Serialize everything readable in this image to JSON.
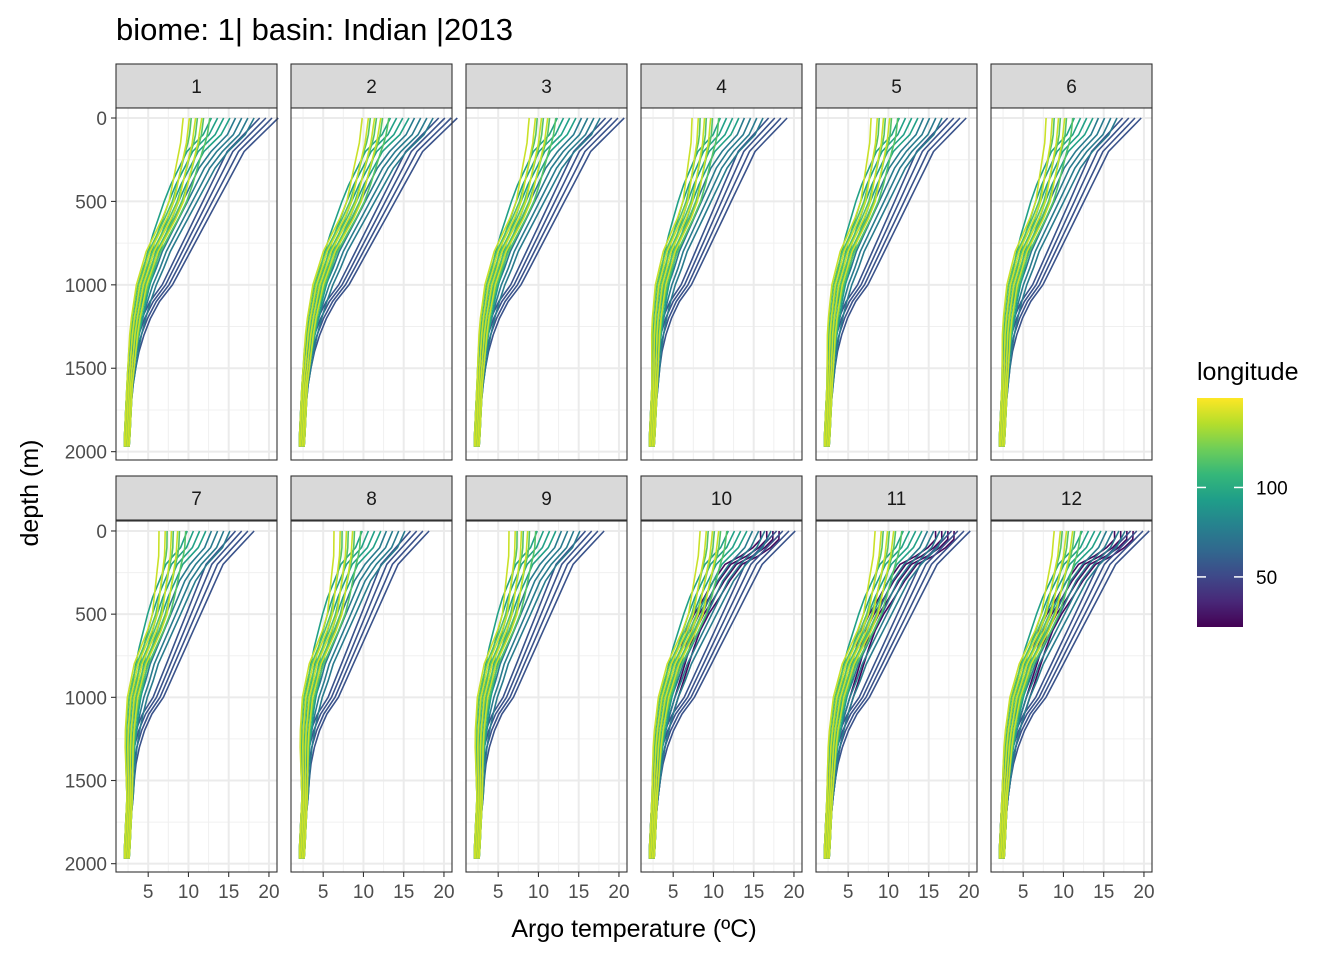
{
  "chart_data": {
    "type": "line",
    "title": "biome: 1| basin: Indian |2013",
    "xlabel": "Argo temperature (ºC)",
    "ylabel": "depth (m)",
    "xlim": [
      1,
      21
    ],
    "ylim": [
      2050,
      -60
    ],
    "y_reversed": true,
    "xticks": [
      5,
      10,
      15,
      20
    ],
    "yticks": [
      0,
      500,
      1000,
      1500,
      2000
    ],
    "grid": true,
    "facet_variable": "month",
    "panels": [
      "1",
      "2",
      "3",
      "4",
      "5",
      "6",
      "7",
      "8",
      "9",
      "10",
      "11",
      "12"
    ],
    "legend": {
      "title": "longitude",
      "type": "colorbar",
      "placement": "right",
      "range": [
        22,
        150
      ],
      "ticks": [
        50,
        100
      ],
      "palette": [
        "#440154",
        "#482878",
        "#3e4989",
        "#31688e",
        "#26828e",
        "#1f9e89",
        "#35b779",
        "#6ece58",
        "#b5de2b",
        "#fde725"
      ]
    },
    "depths": [
      0,
      50,
      100,
      150,
      200,
      300,
      400,
      500,
      600,
      700,
      800,
      900,
      1000,
      1100,
      1200,
      1300,
      1400,
      1500,
      1600,
      1700,
      1800,
      1900,
      1970
    ],
    "profile_groups": [
      {
        "longitude": 25,
        "temperature": [
          17.0,
          17.0,
          16.0,
          14.5,
          12.5,
          11.0,
          9.8,
          8.5,
          7.5,
          6.8,
          6.2,
          5.6,
          5.0,
          4.4,
          3.9,
          3.5,
          3.2,
          3.0,
          2.8,
          2.6,
          2.5,
          2.4,
          2.3
        ]
      },
      {
        "longitude": 55,
        "temperature": [
          19.0,
          18.0,
          17.0,
          16.0,
          15.0,
          14.0,
          13.0,
          12.0,
          11.0,
          10.0,
          9.0,
          8.0,
          7.0,
          5.5,
          4.5,
          3.8,
          3.3,
          3.0,
          2.8,
          2.6,
          2.5,
          2.4,
          2.3
        ]
      },
      {
        "longitude": 75,
        "temperature": [
          16.0,
          15.5,
          15.0,
          14.0,
          13.0,
          11.5,
          10.5,
          9.5,
          8.5,
          7.5,
          6.5,
          5.8,
          5.0,
          4.4,
          3.9,
          3.5,
          3.2,
          3.0,
          2.8,
          2.6,
          2.5,
          2.4,
          2.3
        ]
      },
      {
        "longitude": 95,
        "temperature": [
          13.0,
          12.5,
          12.0,
          11.0,
          10.0,
          9.0,
          8.0,
          7.2,
          6.5,
          5.8,
          5.2,
          4.7,
          4.2,
          3.8,
          3.5,
          3.2,
          3.0,
          2.8,
          2.7,
          2.6,
          2.5,
          2.4,
          2.3
        ]
      },
      {
        "longitude": 115,
        "temperature": [
          10.5,
          10.4,
          10.3,
          10.1,
          9.8,
          9.3,
          8.8,
          8.2,
          7.3,
          6.3,
          5.3,
          4.6,
          4.0,
          3.6,
          3.3,
          3.1,
          2.9,
          2.8,
          2.7,
          2.6,
          2.5,
          2.4,
          2.3
        ]
      },
      {
        "longitude": 140,
        "temperature": [
          9.5,
          9.4,
          9.3,
          9.2,
          9.0,
          8.6,
          8.2,
          7.8,
          7.0,
          6.0,
          5.0,
          4.4,
          3.8,
          3.5,
          3.2,
          3.0,
          2.9,
          2.8,
          2.7,
          2.6,
          2.5,
          2.4,
          2.3
        ]
      }
    ]
  }
}
